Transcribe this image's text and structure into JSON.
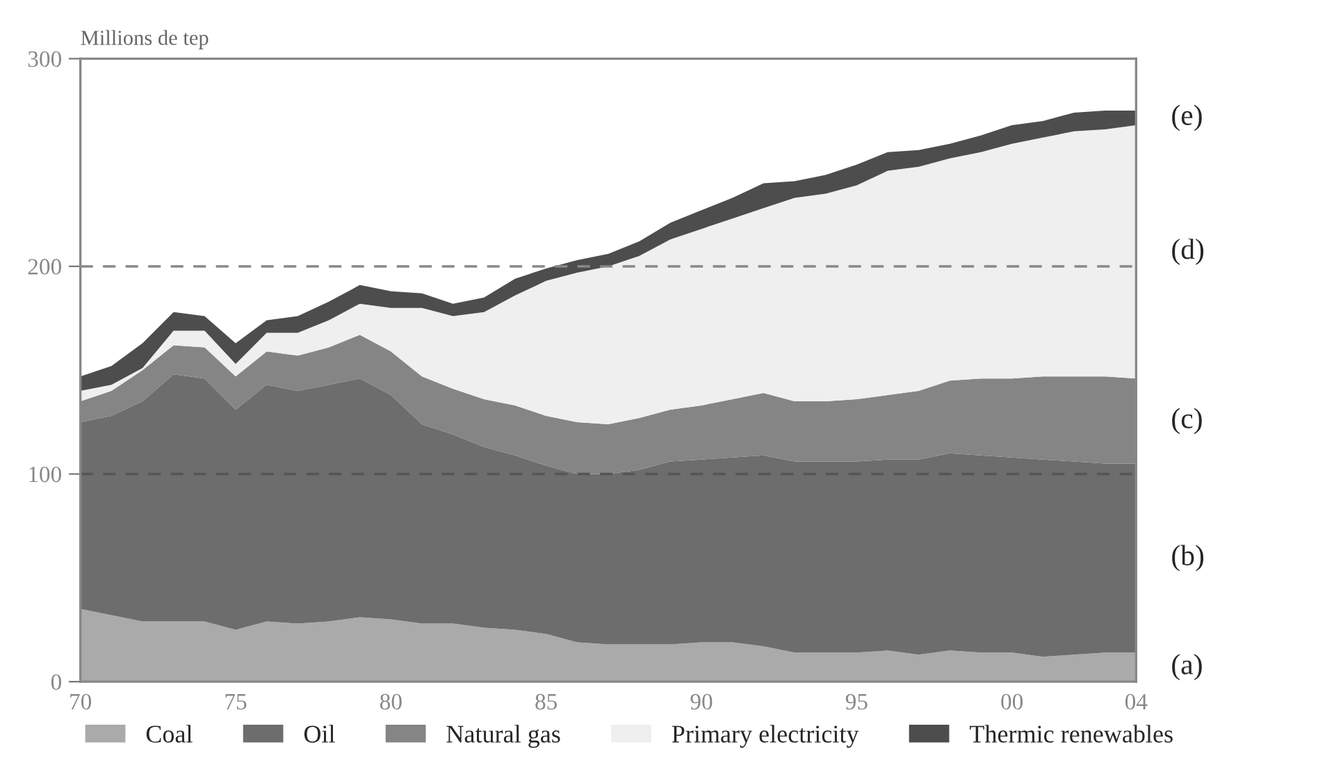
{
  "chart_data": {
    "type": "area",
    "stacked": true,
    "ylabel": "Millions de tep",
    "x": [
      1970,
      1971,
      1972,
      1973,
      1974,
      1975,
      1976,
      1977,
      1978,
      1979,
      1980,
      1981,
      1982,
      1983,
      1984,
      1985,
      1986,
      1987,
      1988,
      1989,
      1990,
      1991,
      1992,
      1993,
      1994,
      1995,
      1996,
      1997,
      1998,
      1999,
      2000,
      2001,
      2002,
      2003,
      2004
    ],
    "series": [
      {
        "name": "Coal",
        "color": "#aaaaaa",
        "values": [
          35,
          32,
          29,
          29,
          29,
          25,
          29,
          28,
          29,
          31,
          30,
          28,
          28,
          26,
          25,
          23,
          19,
          18,
          18,
          18,
          19,
          19,
          17,
          14,
          14,
          14,
          15,
          13,
          15,
          14,
          14,
          12,
          13,
          14,
          14
        ]
      },
      {
        "name": "Oil",
        "color": "#6d6d6d",
        "values": [
          90,
          96,
          106,
          119,
          117,
          106,
          114,
          112,
          114,
          115,
          108,
          96,
          91,
          87,
          84,
          81,
          81,
          82,
          84,
          88,
          88,
          89,
          92,
          92,
          92,
          92,
          92,
          94,
          95,
          95,
          94,
          95,
          93,
          91,
          91
        ]
      },
      {
        "name": "Natural gas",
        "color": "#858585",
        "values": [
          10,
          12,
          15,
          14,
          15,
          16,
          16,
          17,
          18,
          21,
          21,
          23,
          22,
          23,
          24,
          24,
          25,
          24,
          25,
          25,
          26,
          28,
          30,
          29,
          29,
          30,
          31,
          33,
          35,
          37,
          38,
          40,
          41,
          42,
          41
        ]
      },
      {
        "name": "Primary electricity",
        "color": "#efefef",
        "values": [
          5,
          3,
          1,
          7,
          8,
          6,
          9,
          11,
          13,
          15,
          21,
          33,
          35,
          42,
          53,
          65,
          72,
          76,
          78,
          82,
          85,
          87,
          89,
          98,
          100,
          103,
          108,
          108,
          107,
          109,
          113,
          115,
          118,
          119,
          122
        ]
      },
      {
        "name": "Thermic renewables",
        "color": "#4d4d4d",
        "values": [
          7,
          9,
          12,
          9,
          7,
          10,
          6,
          8,
          9,
          9,
          8,
          7,
          6,
          7,
          8,
          6,
          6,
          6,
          7,
          8,
          9,
          10,
          12,
          8,
          9,
          10,
          9,
          8,
          7,
          8,
          9,
          8,
          9,
          9,
          7
        ]
      }
    ],
    "annotations": [
      "(a)",
      "(b)",
      "(c)",
      "(d)",
      "(e)"
    ],
    "xlim": [
      1970,
      2004
    ],
    "xticks": [
      {
        "value": 1970,
        "label": "70"
      },
      {
        "value": 1975,
        "label": "75"
      },
      {
        "value": 1980,
        "label": "80"
      },
      {
        "value": 1985,
        "label": "85"
      },
      {
        "value": 1990,
        "label": "90"
      },
      {
        "value": 1995,
        "label": "95"
      },
      {
        "value": 2000,
        "label": "00"
      },
      {
        "value": 2004,
        "label": "04"
      }
    ],
    "ylim": [
      0,
      300
    ],
    "yticks": [
      0,
      100,
      200,
      300
    ],
    "ref_lines": [
      {
        "axis": "y",
        "value": 100,
        "color": "#555555",
        "line_style": "dashed"
      },
      {
        "axis": "y",
        "value": 200,
        "color": "#888888",
        "line_style": "dashed"
      }
    ],
    "grid": false,
    "legend": "bottom"
  }
}
